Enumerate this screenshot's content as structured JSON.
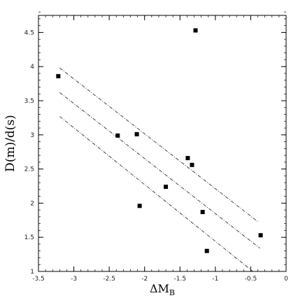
{
  "chart_data": {
    "type": "scatter",
    "xlabel": "ΔM",
    "xlabel_subscript": "B",
    "ylabel": "D(m)/d(s)",
    "xlim": [
      -3.5,
      0
    ],
    "ylim": [
      1,
      4.75
    ],
    "xticks": [
      {
        "value": -3.5,
        "label": "-3.5"
      },
      {
        "value": -3,
        "label": "-3"
      },
      {
        "value": -2.5,
        "label": "-2.5"
      },
      {
        "value": -2,
        "label": "-2"
      },
      {
        "value": -1.5,
        "label": "-1.5"
      },
      {
        "value": -1,
        "label": "-1"
      },
      {
        "value": -0.5,
        "label": "-0.5"
      },
      {
        "value": 0,
        "label": "0"
      }
    ],
    "yticks": [
      {
        "value": 1,
        "label": "1"
      },
      {
        "value": 1.5,
        "label": "1.5"
      },
      {
        "value": 2,
        "label": "2"
      },
      {
        "value": 2.5,
        "label": "2.5"
      },
      {
        "value": 3,
        "label": "3"
      },
      {
        "value": 3.5,
        "label": "3.5"
      },
      {
        "value": 4,
        "label": "4"
      },
      {
        "value": 4.5,
        "label": "4.5"
      }
    ],
    "x_minor_step": 0.1,
    "y_minor_step": 0.1,
    "grid": false,
    "points": [
      {
        "x": -3.22,
        "y": 3.86
      },
      {
        "x": -2.38,
        "y": 2.99
      },
      {
        "x": -2.11,
        "y": 3.01
      },
      {
        "x": -2.07,
        "y": 1.96
      },
      {
        "x": -1.7,
        "y": 2.24
      },
      {
        "x": -1.39,
        "y": 2.66
      },
      {
        "x": -1.33,
        "y": 2.56
      },
      {
        "x": -1.28,
        "y": 4.53
      },
      {
        "x": -1.18,
        "y": 1.87
      },
      {
        "x": -1.12,
        "y": 1.3
      },
      {
        "x": -0.36,
        "y": 1.53
      }
    ],
    "lines": [
      {
        "x": [
          -3.2,
          -0.4
        ],
        "y": [
          3.98,
          1.73
        ],
        "style": "dashed"
      },
      {
        "x": [
          -3.2,
          -0.37
        ],
        "y": [
          3.62,
          1.34
        ],
        "style": "dashed"
      },
      {
        "x": [
          -3.2,
          -0.47
        ],
        "y": [
          3.27,
          1.0
        ],
        "style": "dashed"
      }
    ],
    "marker": "filled-square",
    "colors": {
      "points": "#000000",
      "lines": "#333333",
      "axes": "#000000"
    }
  }
}
